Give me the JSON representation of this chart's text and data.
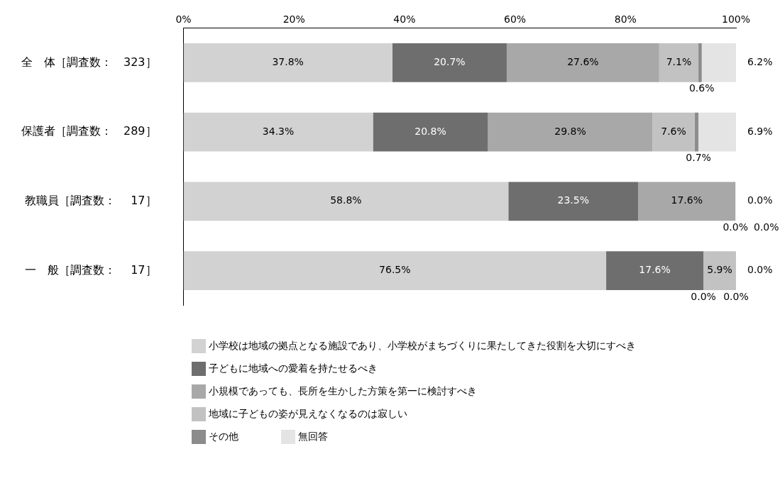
{
  "chart_data": {
    "type": "bar",
    "orientation": "horizontal",
    "stacked": true,
    "legend": "bottom",
    "grid": false,
    "categories": [
      "全　体［調査数：　323］",
      "保護者［調査数：　289］",
      "教職員［調査数：　 17］",
      "一　般［調査数：　 17］"
    ],
    "xlim": [
      0,
      100
    ],
    "xticks": [
      {
        "value": 0,
        "label": "0%"
      },
      {
        "value": 20,
        "label": "20%"
      },
      {
        "value": 40,
        "label": "40%"
      },
      {
        "value": 60,
        "label": "60%"
      },
      {
        "value": 80,
        "label": "80%"
      },
      {
        "value": 100,
        "label": "100%"
      }
    ],
    "series": [
      {
        "name": "小学校は地域の拠点となる施設であり、小学校がまちづくりに果たしてきた役割を大切にすべき",
        "color": "#d2d2d2",
        "values": [
          37.8,
          34.3,
          58.8,
          76.5
        ],
        "value_labels": [
          "37.8%",
          "34.3%",
          "58.8%",
          "76.5%"
        ]
      },
      {
        "name": "子どもに地域への愛着を持たせるべき",
        "color": "#6e6e6e",
        "values": [
          20.7,
          20.8,
          23.5,
          17.6
        ],
        "value_labels": [
          "20.7%",
          "20.8%",
          "23.5%",
          "17.6%"
        ]
      },
      {
        "name": "小規模であっても、長所を生かした方策を第一に検討すべき",
        "color": "#a8a8a8",
        "values": [
          27.6,
          29.8,
          17.6,
          0.0
        ],
        "value_labels": [
          "27.6%",
          "29.8%",
          "17.6%",
          "0.0%"
        ]
      },
      {
        "name": "地域に子どもの姿が見えなくなるのは寂しい",
        "color": "#c2c2c2",
        "values": [
          7.1,
          7.6,
          0.0,
          5.9
        ],
        "value_labels": [
          "7.1%",
          "7.6%",
          "0.0%",
          "5.9%"
        ]
      },
      {
        "name": "その他",
        "color": "#8c8c8c",
        "values": [
          0.6,
          0.7,
          0.0,
          0.0
        ],
        "value_labels": [
          "0.6%",
          "0.7%",
          "0.0%",
          "0.0%"
        ]
      },
      {
        "name": "無回答",
        "color": "#e4e4e4",
        "values": [
          6.2,
          6.9,
          0.0,
          0.0
        ],
        "value_labels": [
          "6.2%",
          "6.9%",
          "0.0%",
          "0.0%"
        ]
      }
    ]
  }
}
